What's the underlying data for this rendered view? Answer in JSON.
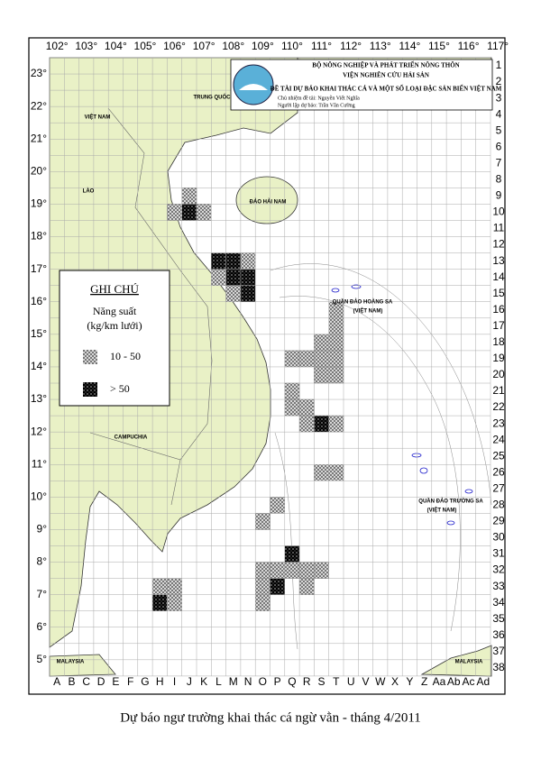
{
  "header": {
    "ministry": "BỘ NÔNG NGHIỆP VÀ PHÁT TRIỂN NÔNG THÔN",
    "institute": "VIỆN NGHIÊN CỨU HẢI SẢN",
    "project": "ĐỀ TÀI DỰ BÁO KHAI THÁC CÁ VÀ MỘT SỐ LOẠI ĐẶC SẢN BIỂN VIỆT NAM",
    "leader": "Chủ nhiệm đề tài: Nguyễn Viết Nghĩa",
    "executor": "Người lập dự báo: Trần Văn Cường"
  },
  "legend": {
    "title": "GHI CHÚ",
    "quantity": "Năng suất",
    "unit": "(kg/km lưới)",
    "classes": [
      "10 - 50",
      "> 50"
    ]
  },
  "longitudes": [
    "102°",
    "103°",
    "104°",
    "105°",
    "106°",
    "107°",
    "108°",
    "109°",
    "110°",
    "111°",
    "112°",
    "113°",
    "114°",
    "115°",
    "116°",
    "117°"
  ],
  "latitudes": [
    "23°",
    "22°",
    "21°",
    "20°",
    "19°",
    "18°",
    "17°",
    "16°",
    "15°",
    "14°",
    "13°",
    "12°",
    "11°",
    "10°",
    "9°",
    "8°",
    "7°",
    "6°",
    "5°"
  ],
  "rows": [
    1,
    2,
    3,
    4,
    5,
    6,
    7,
    8,
    9,
    10,
    11,
    12,
    13,
    14,
    15,
    16,
    17,
    18,
    19,
    20,
    21,
    22,
    23,
    24,
    25,
    26,
    27,
    28,
    29,
    30,
    31,
    32,
    33,
    34,
    35,
    36,
    37,
    38
  ],
  "columns": [
    "A",
    "B",
    "C",
    "D",
    "E",
    "F",
    "G",
    "H",
    "I",
    "J",
    "K",
    "L",
    "M",
    "N",
    "O",
    "P",
    "Q",
    "R",
    "S",
    "T",
    "U",
    "V",
    "W",
    "X",
    "Y",
    "Z",
    "Aa",
    "Ab",
    "Ac",
    "Ad"
  ],
  "cells": [
    {
      "col": 9,
      "row": 9,
      "level": 1
    },
    {
      "col": 8,
      "row": 10,
      "level": 1
    },
    {
      "col": 9,
      "row": 10,
      "level": 2
    },
    {
      "col": 10,
      "row": 10,
      "level": 1
    },
    {
      "col": 11,
      "row": 13,
      "level": 2
    },
    {
      "col": 12,
      "row": 13,
      "level": 2
    },
    {
      "col": 12,
      "row": 14,
      "level": 2
    },
    {
      "col": 13,
      "row": 14,
      "level": 2
    },
    {
      "col": 11,
      "row": 14,
      "level": 1
    },
    {
      "col": 13,
      "row": 13,
      "level": 1
    },
    {
      "col": 12,
      "row": 15,
      "level": 1
    },
    {
      "col": 13,
      "row": 15,
      "level": 2
    },
    {
      "col": 19,
      "row": 16,
      "level": 1
    },
    {
      "col": 19,
      "row": 17,
      "level": 1
    },
    {
      "col": 18,
      "row": 18,
      "level": 1
    },
    {
      "col": 19,
      "row": 18,
      "level": 1
    },
    {
      "col": 16,
      "row": 19,
      "level": 1
    },
    {
      "col": 17,
      "row": 19,
      "level": 1
    },
    {
      "col": 18,
      "row": 19,
      "level": 1
    },
    {
      "col": 19,
      "row": 19,
      "level": 1
    },
    {
      "col": 18,
      "row": 20,
      "level": 1
    },
    {
      "col": 19,
      "row": 20,
      "level": 1
    },
    {
      "col": 16,
      "row": 21,
      "level": 1
    },
    {
      "col": 16,
      "row": 22,
      "level": 1
    },
    {
      "col": 17,
      "row": 22,
      "level": 1
    },
    {
      "col": 17,
      "row": 23,
      "level": 1
    },
    {
      "col": 18,
      "row": 23,
      "level": 2
    },
    {
      "col": 19,
      "row": 23,
      "level": 1
    },
    {
      "col": 18,
      "row": 26,
      "level": 1
    },
    {
      "col": 19,
      "row": 26,
      "level": 1
    },
    {
      "col": 14,
      "row": 29,
      "level": 1
    },
    {
      "col": 15,
      "row": 28,
      "level": 1
    },
    {
      "col": 16,
      "row": 31,
      "level": 2
    },
    {
      "col": 14,
      "row": 32,
      "level": 1
    },
    {
      "col": 15,
      "row": 32,
      "level": 1
    },
    {
      "col": 16,
      "row": 32,
      "level": 1
    },
    {
      "col": 17,
      "row": 32,
      "level": 1
    },
    {
      "col": 18,
      "row": 32,
      "level": 1
    },
    {
      "col": 14,
      "row": 33,
      "level": 1
    },
    {
      "col": 15,
      "row": 33,
      "level": 2
    },
    {
      "col": 17,
      "row": 33,
      "level": 1
    },
    {
      "col": 14,
      "row": 34,
      "level": 1
    },
    {
      "col": 7,
      "row": 33,
      "level": 1
    },
    {
      "col": 8,
      "row": 33,
      "level": 1
    },
    {
      "col": 7,
      "row": 34,
      "level": 2
    },
    {
      "col": 8,
      "row": 34,
      "level": 1
    }
  ],
  "places": {
    "china": "TRUNG QUỐC",
    "vietnam": "VIỆT NAM",
    "laos": "LÀO",
    "cambodia": "CAMPUCHIA",
    "hainan": "ĐẢO HẢI NAM",
    "paracel": "QUẦN ĐẢO HOÀNG SA",
    "paracel_owner": "(VIỆT NAM)",
    "spratly": "QUẦN ĐẢO TRƯỜNG SA",
    "spratly_owner": "(VIỆT NAM)",
    "malaysia_west": "MALAYSIA",
    "malaysia_east": "MALAYSIA"
  },
  "caption": "Dự báo ngư trường khai thác cá ngừ vằn - tháng 4/2011"
}
